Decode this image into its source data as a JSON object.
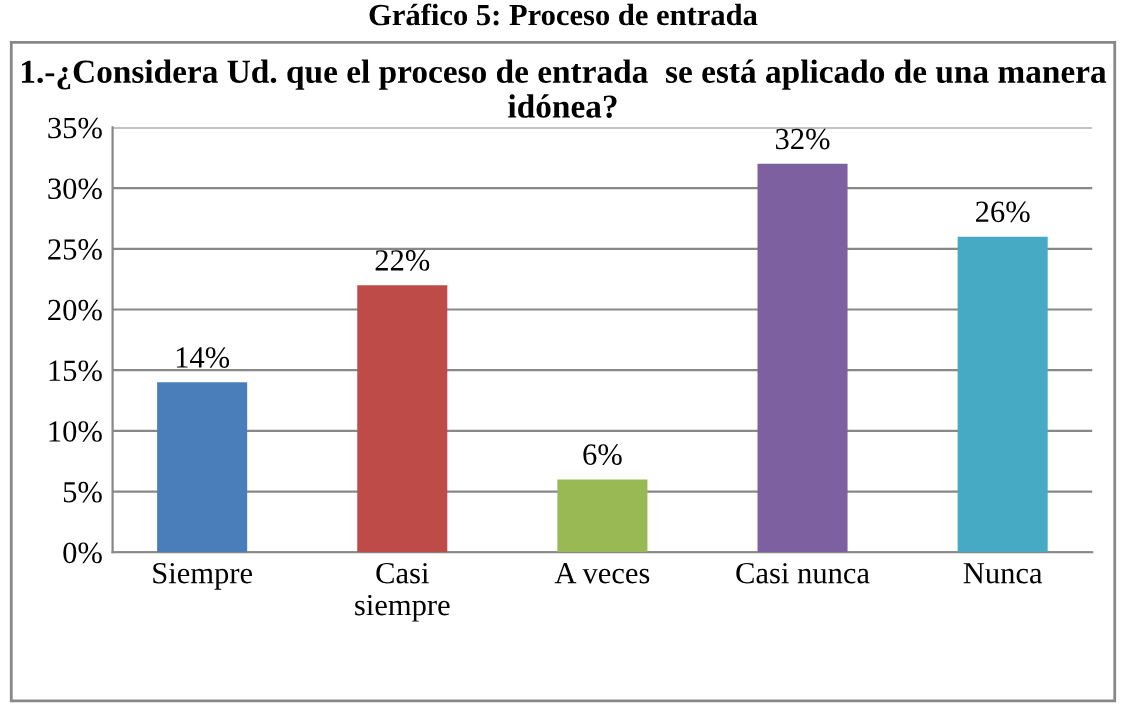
{
  "chart_data": {
    "type": "bar",
    "subtitle": "Gráfico 5: Proceso de entrada",
    "title": "1.-¿Considera Ud. que el proceso de entrada  se está aplicado de una manera idónea?",
    "categories": [
      "Siempre",
      "Casi\nsiempre",
      "A veces",
      "Casi nunca",
      "Nunca"
    ],
    "values": [
      14,
      22,
      6,
      32,
      26
    ],
    "colors": [
      "#4a7ebb",
      "#be4b48",
      "#98b954",
      "#7d60a0",
      "#46aac5"
    ],
    "value_labels": [
      "14%",
      "22%",
      "6%",
      "32%",
      "26%"
    ],
    "ylim": [
      0,
      35
    ],
    "yticks": [
      {
        "value": 0,
        "label": "0%"
      },
      {
        "value": 5,
        "label": "5%"
      },
      {
        "value": 10,
        "label": "10%"
      },
      {
        "value": 15,
        "label": "15%"
      },
      {
        "value": 20,
        "label": "20%"
      },
      {
        "value": 25,
        "label": "25%"
      },
      {
        "value": 30,
        "label": "30%"
      },
      {
        "value": 35,
        "label": "35%"
      }
    ],
    "grid": "y",
    "legend": false
  }
}
